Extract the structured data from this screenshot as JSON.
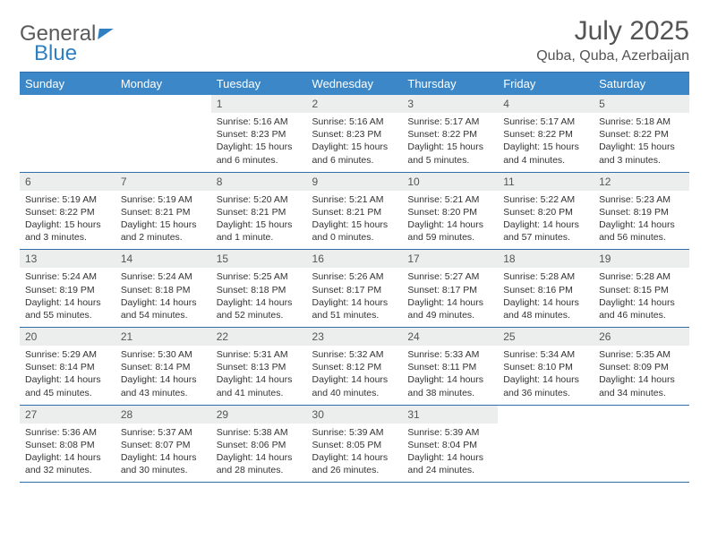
{
  "logo": {
    "text1": "General",
    "text2": "Blue"
  },
  "header": {
    "month_title": "July 2025",
    "location": "Quba, Quba, Azerbaijan"
  },
  "colors": {
    "header_bg": "#3c87c7",
    "header_text": "#ffffff",
    "daynum_bg": "#eceded",
    "row_border": "#2f6ea8",
    "title_color": "#545454"
  },
  "weekdays": [
    "Sunday",
    "Monday",
    "Tuesday",
    "Wednesday",
    "Thursday",
    "Friday",
    "Saturday"
  ],
  "weeks": [
    [
      {
        "empty": true
      },
      {
        "empty": true
      },
      {
        "day": "1",
        "sunrise": "Sunrise: 5:16 AM",
        "sunset": "Sunset: 8:23 PM",
        "daylight": "Daylight: 15 hours and 6 minutes."
      },
      {
        "day": "2",
        "sunrise": "Sunrise: 5:16 AM",
        "sunset": "Sunset: 8:23 PM",
        "daylight": "Daylight: 15 hours and 6 minutes."
      },
      {
        "day": "3",
        "sunrise": "Sunrise: 5:17 AM",
        "sunset": "Sunset: 8:22 PM",
        "daylight": "Daylight: 15 hours and 5 minutes."
      },
      {
        "day": "4",
        "sunrise": "Sunrise: 5:17 AM",
        "sunset": "Sunset: 8:22 PM",
        "daylight": "Daylight: 15 hours and 4 minutes."
      },
      {
        "day": "5",
        "sunrise": "Sunrise: 5:18 AM",
        "sunset": "Sunset: 8:22 PM",
        "daylight": "Daylight: 15 hours and 3 minutes."
      }
    ],
    [
      {
        "day": "6",
        "sunrise": "Sunrise: 5:19 AM",
        "sunset": "Sunset: 8:22 PM",
        "daylight": "Daylight: 15 hours and 3 minutes."
      },
      {
        "day": "7",
        "sunrise": "Sunrise: 5:19 AM",
        "sunset": "Sunset: 8:21 PM",
        "daylight": "Daylight: 15 hours and 2 minutes."
      },
      {
        "day": "8",
        "sunrise": "Sunrise: 5:20 AM",
        "sunset": "Sunset: 8:21 PM",
        "daylight": "Daylight: 15 hours and 1 minute."
      },
      {
        "day": "9",
        "sunrise": "Sunrise: 5:21 AM",
        "sunset": "Sunset: 8:21 PM",
        "daylight": "Daylight: 15 hours and 0 minutes."
      },
      {
        "day": "10",
        "sunrise": "Sunrise: 5:21 AM",
        "sunset": "Sunset: 8:20 PM",
        "daylight": "Daylight: 14 hours and 59 minutes."
      },
      {
        "day": "11",
        "sunrise": "Sunrise: 5:22 AM",
        "sunset": "Sunset: 8:20 PM",
        "daylight": "Daylight: 14 hours and 57 minutes."
      },
      {
        "day": "12",
        "sunrise": "Sunrise: 5:23 AM",
        "sunset": "Sunset: 8:19 PM",
        "daylight": "Daylight: 14 hours and 56 minutes."
      }
    ],
    [
      {
        "day": "13",
        "sunrise": "Sunrise: 5:24 AM",
        "sunset": "Sunset: 8:19 PM",
        "daylight": "Daylight: 14 hours and 55 minutes."
      },
      {
        "day": "14",
        "sunrise": "Sunrise: 5:24 AM",
        "sunset": "Sunset: 8:18 PM",
        "daylight": "Daylight: 14 hours and 54 minutes."
      },
      {
        "day": "15",
        "sunrise": "Sunrise: 5:25 AM",
        "sunset": "Sunset: 8:18 PM",
        "daylight": "Daylight: 14 hours and 52 minutes."
      },
      {
        "day": "16",
        "sunrise": "Sunrise: 5:26 AM",
        "sunset": "Sunset: 8:17 PM",
        "daylight": "Daylight: 14 hours and 51 minutes."
      },
      {
        "day": "17",
        "sunrise": "Sunrise: 5:27 AM",
        "sunset": "Sunset: 8:17 PM",
        "daylight": "Daylight: 14 hours and 49 minutes."
      },
      {
        "day": "18",
        "sunrise": "Sunrise: 5:28 AM",
        "sunset": "Sunset: 8:16 PM",
        "daylight": "Daylight: 14 hours and 48 minutes."
      },
      {
        "day": "19",
        "sunrise": "Sunrise: 5:28 AM",
        "sunset": "Sunset: 8:15 PM",
        "daylight": "Daylight: 14 hours and 46 minutes."
      }
    ],
    [
      {
        "day": "20",
        "sunrise": "Sunrise: 5:29 AM",
        "sunset": "Sunset: 8:14 PM",
        "daylight": "Daylight: 14 hours and 45 minutes."
      },
      {
        "day": "21",
        "sunrise": "Sunrise: 5:30 AM",
        "sunset": "Sunset: 8:14 PM",
        "daylight": "Daylight: 14 hours and 43 minutes."
      },
      {
        "day": "22",
        "sunrise": "Sunrise: 5:31 AM",
        "sunset": "Sunset: 8:13 PM",
        "daylight": "Daylight: 14 hours and 41 minutes."
      },
      {
        "day": "23",
        "sunrise": "Sunrise: 5:32 AM",
        "sunset": "Sunset: 8:12 PM",
        "daylight": "Daylight: 14 hours and 40 minutes."
      },
      {
        "day": "24",
        "sunrise": "Sunrise: 5:33 AM",
        "sunset": "Sunset: 8:11 PM",
        "daylight": "Daylight: 14 hours and 38 minutes."
      },
      {
        "day": "25",
        "sunrise": "Sunrise: 5:34 AM",
        "sunset": "Sunset: 8:10 PM",
        "daylight": "Daylight: 14 hours and 36 minutes."
      },
      {
        "day": "26",
        "sunrise": "Sunrise: 5:35 AM",
        "sunset": "Sunset: 8:09 PM",
        "daylight": "Daylight: 14 hours and 34 minutes."
      }
    ],
    [
      {
        "day": "27",
        "sunrise": "Sunrise: 5:36 AM",
        "sunset": "Sunset: 8:08 PM",
        "daylight": "Daylight: 14 hours and 32 minutes."
      },
      {
        "day": "28",
        "sunrise": "Sunrise: 5:37 AM",
        "sunset": "Sunset: 8:07 PM",
        "daylight": "Daylight: 14 hours and 30 minutes."
      },
      {
        "day": "29",
        "sunrise": "Sunrise: 5:38 AM",
        "sunset": "Sunset: 8:06 PM",
        "daylight": "Daylight: 14 hours and 28 minutes."
      },
      {
        "day": "30",
        "sunrise": "Sunrise: 5:39 AM",
        "sunset": "Sunset: 8:05 PM",
        "daylight": "Daylight: 14 hours and 26 minutes."
      },
      {
        "day": "31",
        "sunrise": "Sunrise: 5:39 AM",
        "sunset": "Sunset: 8:04 PM",
        "daylight": "Daylight: 14 hours and 24 minutes."
      },
      {
        "empty": true
      },
      {
        "empty": true
      }
    ]
  ]
}
